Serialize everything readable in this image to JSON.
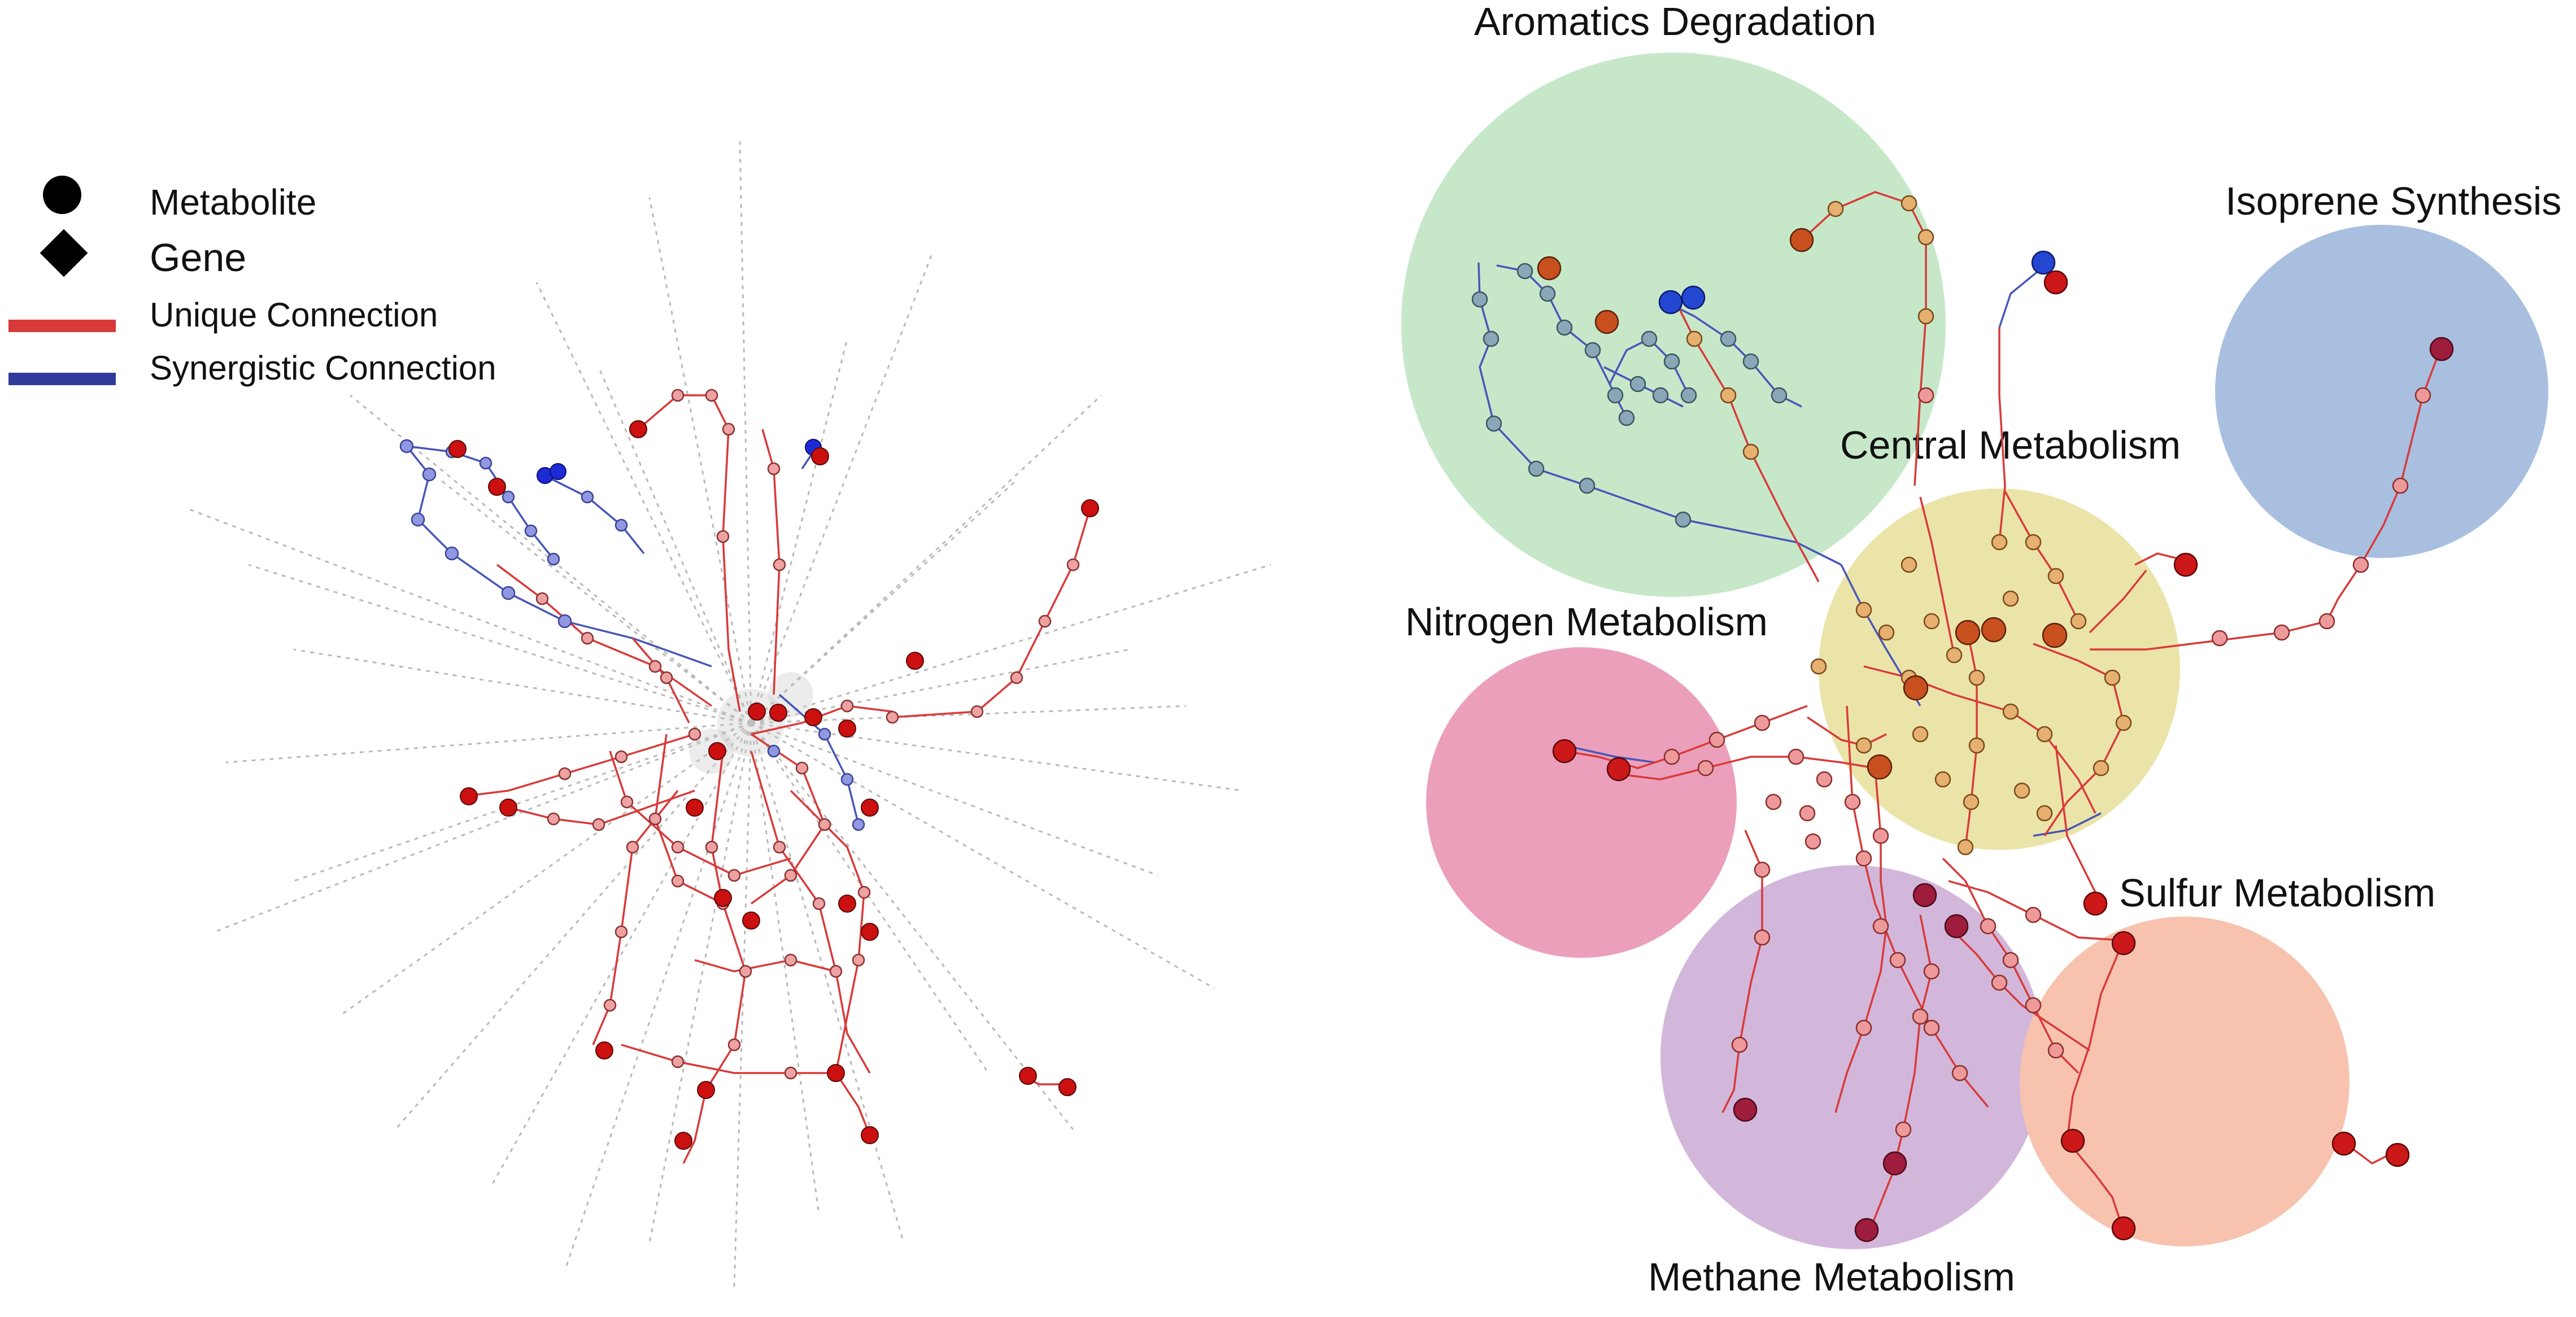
{
  "legend": {
    "metabolite": "Metabolite",
    "gene": "Gene",
    "unique": "Unique Connection",
    "synergistic": "Synergistic Connection"
  },
  "modules": {
    "aromatics": "Aromatics Degradation",
    "isoprene": "Isoprene Synthesis",
    "central": "Central Metabolism",
    "nitrogen": "Nitrogen Metabolism",
    "sulfur": "Sulfur Metabolism",
    "methane": "Methane Metabolism"
  },
  "colors": {
    "unique_connection": "#d83a3a",
    "synergistic_connection": "#2f3a9a",
    "aromatics": "#c6e8c9",
    "isoprene": "#a9bfe0",
    "central": "#e9e2a3",
    "nitrogen": "#ec9fbb",
    "sulfur": "#f7c3ae",
    "methane": "#d2b7da"
  }
}
